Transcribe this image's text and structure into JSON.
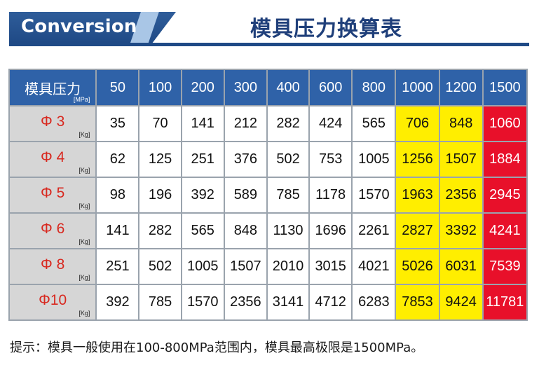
{
  "header": {
    "banner_text": "Conversion",
    "title": "模具压力换算表",
    "brand_color": "#1f4a86"
  },
  "table": {
    "corner_label": "模具压力",
    "corner_unit": "[MPa]",
    "columns": [
      "50",
      "100",
      "200",
      "300",
      "400",
      "600",
      "800",
      "1000",
      "1200",
      "1500"
    ],
    "row_unit": "[Kg]",
    "rows": [
      {
        "label": "Φ 3",
        "values": [
          "35",
          "70",
          "141",
          "212",
          "282",
          "424",
          "565",
          "706",
          "848",
          "1060"
        ]
      },
      {
        "label": "Φ 4",
        "values": [
          "62",
          "125",
          "251",
          "376",
          "502",
          "753",
          "1005",
          "1256",
          "1507",
          "1884"
        ]
      },
      {
        "label": "Φ 5",
        "values": [
          "98",
          "196",
          "392",
          "589",
          "785",
          "1178",
          "1570",
          "1963",
          "2356",
          "2945"
        ]
      },
      {
        "label": "Φ 6",
        "values": [
          "141",
          "282",
          "565",
          "848",
          "1130",
          "1696",
          "2261",
          "2827",
          "3392",
          "4241"
        ]
      },
      {
        "label": "Φ 8",
        "values": [
          "251",
          "502",
          "1005",
          "1507",
          "2010",
          "3015",
          "4021",
          "5026",
          "6031",
          "7539"
        ]
      },
      {
        "label": "Φ10",
        "values": [
          "392",
          "785",
          "1570",
          "2356",
          "3141",
          "4712",
          "6283",
          "7853",
          "9424",
          "11781"
        ]
      }
    ],
    "highlight_colors": {
      "caution": "#ffee00",
      "limit": "#e8102a"
    }
  },
  "footnote": "提示：模具一般使用在100-800MPa范围内，模具最高极限是1500MPa。"
}
